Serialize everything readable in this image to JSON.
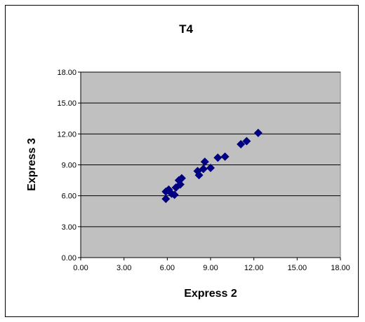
{
  "chart_data": {
    "type": "scatter",
    "title": "T4",
    "xlabel": "Express 2",
    "ylabel": "Express 3",
    "xlim": [
      0,
      18
    ],
    "ylim": [
      0,
      18
    ],
    "x_ticks": [
      "0.00",
      "3.00",
      "6.00",
      "9.00",
      "12.00",
      "15.00",
      "18.00"
    ],
    "y_ticks": [
      "0.00",
      "3.00",
      "6.00",
      "9.00",
      "12.00",
      "15.00",
      "18.00"
    ],
    "grid": "horizontal",
    "legend": "none",
    "marker": "diamond",
    "colors": {
      "plot_bg": "#c0c0c0",
      "marker": "#000080",
      "gridline": "#000000"
    },
    "series": [
      {
        "points": [
          [
            5.9,
            5.7
          ],
          [
            5.9,
            6.4
          ],
          [
            6.1,
            6.6
          ],
          [
            6.3,
            6.2
          ],
          [
            6.5,
            6.1
          ],
          [
            6.6,
            6.8
          ],
          [
            6.8,
            7.5
          ],
          [
            6.9,
            7.1
          ],
          [
            7.0,
            7.7
          ],
          [
            8.1,
            8.4
          ],
          [
            8.2,
            8.0
          ],
          [
            8.5,
            8.6
          ],
          [
            8.6,
            9.3
          ],
          [
            9.0,
            8.7
          ],
          [
            9.5,
            9.7
          ],
          [
            10.0,
            9.8
          ],
          [
            11.1,
            11.0
          ],
          [
            11.5,
            11.3
          ],
          [
            12.3,
            12.1
          ]
        ]
      }
    ]
  }
}
